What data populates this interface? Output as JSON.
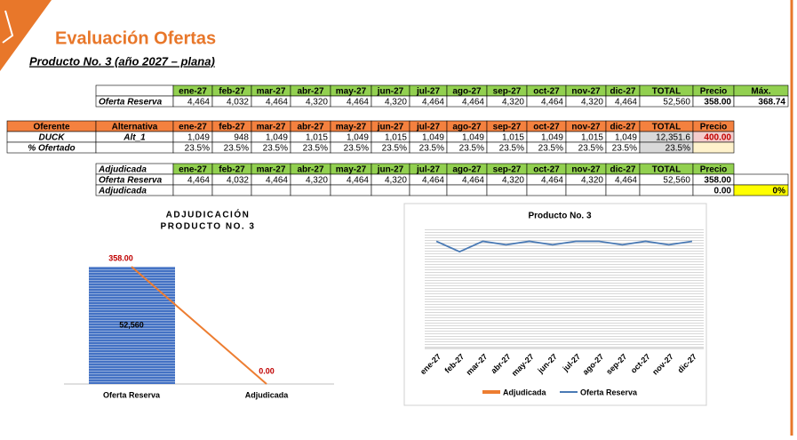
{
  "header": {
    "title": "Evaluación Ofertas",
    "subtitle": "Producto No. 3 (año 2027 – plana)"
  },
  "tables": [
    {
      "header": [
        "ene-27",
        "feb-27",
        "mar-27",
        "abr-27",
        "may-27",
        "jun-27",
        "jul-27",
        "ago-27",
        "sep-27",
        "oct-27",
        "nov-27",
        "dic-27",
        "TOTAL",
        "Precio",
        "Máx."
      ],
      "rows": [
        {
          "label": "Oferta Reserva",
          "cells": [
            "4,464",
            "4,032",
            "4,464",
            "4,320",
            "4,464",
            "4,320",
            "4,464",
            "4,464",
            "4,320",
            "4,464",
            "4,320",
            "4,464",
            "52,560",
            "358.00",
            "368.74"
          ]
        }
      ]
    },
    {
      "header": [
        "Oferente",
        "Alternativa",
        "ene-27",
        "feb-27",
        "mar-27",
        "abr-27",
        "may-27",
        "jun-27",
        "jul-27",
        "ago-27",
        "sep-27",
        "oct-27",
        "nov-27",
        "dic-27",
        "TOTAL",
        "Precio"
      ],
      "rows": [
        {
          "label": "DUCK",
          "cells": [
            "Alt_1",
            "1,049",
            "948",
            "1,049",
            "1,015",
            "1,049",
            "1,015",
            "1,049",
            "1,049",
            "1,015",
            "1,049",
            "1,015",
            "1,049",
            "12,351.6",
            "400.00"
          ]
        },
        {
          "label": "% Ofertado",
          "cells": [
            "23.5%",
            "23.5%",
            "23.5%",
            "23.5%",
            "23.5%",
            "23.5%",
            "23.5%",
            "23.5%",
            "23.5%",
            "23.5%",
            "23.5%",
            "23.5%",
            "23.5%"
          ]
        }
      ]
    },
    {
      "header": [
        "Adjudicada",
        "ene-27",
        "feb-27",
        "mar-27",
        "abr-27",
        "may-27",
        "jun-27",
        "jul-27",
        "ago-27",
        "sep-27",
        "oct-27",
        "nov-27",
        "dic-27",
        "TOTAL",
        "Precio"
      ],
      "rows": [
        {
          "label": "Oferta Reserva",
          "cells": [
            "4,464",
            "4,032",
            "4,464",
            "4,320",
            "4,464",
            "4,320",
            "4,464",
            "4,464",
            "4,320",
            "4,464",
            "4,320",
            "4,464",
            "52,560",
            "358.00"
          ]
        },
        {
          "label": "Adjudicada",
          "cells": [
            "0.00",
            "0%"
          ]
        }
      ]
    }
  ],
  "charts": [
    {
      "type": "bar",
      "title": [
        "ADJUDICACIÓN",
        "PRODUCTO NO. 3"
      ],
      "categories": [
        "Oferta Reserva",
        "Adjudicada"
      ],
      "series": [
        {
          "type": "bar",
          "color": "#4472c4",
          "values": [
            52560,
            0
          ],
          "value_labels": [
            "52,560",
            null
          ]
        },
        {
          "type": "line",
          "axis": "y2",
          "color": "#ed7d31",
          "values": [
            358,
            0
          ],
          "value_labels": [
            "358.00",
            "0.00"
          ]
        }
      ]
    },
    {
      "type": "line",
      "title": "Producto No. 3",
      "categories": [
        "ene-27",
        "feb-27",
        "mar-27",
        "abr-27",
        "may-27",
        "jun-27",
        "jul-27",
        "ago-27",
        "sep-27",
        "oct-27",
        "nov-27",
        "dic-27"
      ],
      "ylim": [
        0,
        5000
      ],
      "grid": true,
      "series": [
        {
          "name": "Adjudicada",
          "type": "bar",
          "color": "#ed7d31",
          "values": [
            0,
            0,
            0,
            0,
            0,
            0,
            0,
            0,
            0,
            0,
            0,
            0
          ]
        },
        {
          "name": "Oferta Reserva",
          "type": "line",
          "color": "#4a7ab5",
          "values": [
            4464,
            4032,
            4464,
            4320,
            4464,
            4320,
            4464,
            4464,
            4320,
            4464,
            4320,
            4464
          ]
        }
      ]
    }
  ]
}
